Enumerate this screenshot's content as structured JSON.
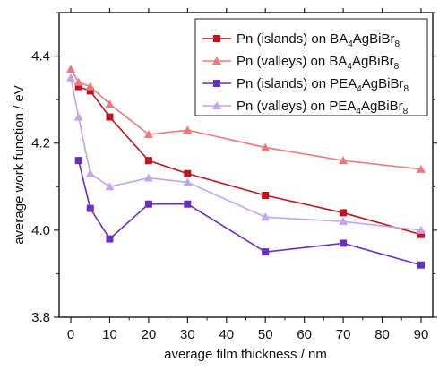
{
  "chart_data": {
    "type": "line",
    "xlabel": "average film thickness / nm",
    "ylabel": "average work function / eV",
    "xlim": [
      -3,
      93
    ],
    "ylim": [
      3.8,
      4.5
    ],
    "x_ticks": [
      "0",
      "10",
      "20",
      "30",
      "40",
      "50",
      "60",
      "70",
      "80",
      "90"
    ],
    "y_ticks": [
      "3.8",
      "4.0",
      "4.2",
      "4.4"
    ],
    "legend_position": "top-right",
    "grid": false,
    "series": [
      {
        "name": "Pn (islands) on BA4AgBiBr8",
        "legend": {
          "pre": "Pn (islands) on BA",
          "sub1": "4",
          "mid": "AgBiBr",
          "sub2": "8"
        },
        "color": "#c0141c",
        "marker": "square",
        "x": [
          2,
          5,
          10,
          20,
          30,
          50,
          70,
          90
        ],
        "y": [
          4.33,
          4.32,
          4.26,
          4.16,
          4.13,
          4.08,
          4.04,
          3.99
        ]
      },
      {
        "name": "Pn (valleys) on BA4AgBiBr8",
        "legend": {
          "pre": "Pn (valleys) on BA",
          "sub1": "4",
          "mid": "AgBiBr",
          "sub2": "8"
        },
        "color": "#f0787a",
        "marker": "triangle",
        "x": [
          0,
          2,
          5,
          10,
          20,
          30,
          50,
          70,
          90
        ],
        "y": [
          4.37,
          4.34,
          4.33,
          4.29,
          4.22,
          4.23,
          4.19,
          4.16,
          4.14
        ]
      },
      {
        "name": "Pn (islands) on PEA4AgBiBr8",
        "legend": {
          "pre": "Pn (islands) on PEA",
          "sub1": "4",
          "mid": "AgBiBr",
          "sub2": "8"
        },
        "color": "#6a2fc0",
        "marker": "square",
        "x": [
          2,
          5,
          10,
          20,
          30,
          50,
          70,
          90
        ],
        "y": [
          4.16,
          4.05,
          3.98,
          4.06,
          4.06,
          3.95,
          3.97,
          3.92
        ]
      },
      {
        "name": "Pn (valleys) on PEA4AgBiBr8",
        "legend": {
          "pre": "Pn (valleys) on PEA",
          "sub1": "4",
          "mid": "AgBiBr",
          "sub2": "8"
        },
        "color": "#c4a3ee",
        "marker": "triangle",
        "x": [
          0,
          2,
          5,
          10,
          20,
          30,
          50,
          70,
          90
        ],
        "y": [
          4.35,
          4.26,
          4.13,
          4.1,
          4.12,
          4.11,
          4.03,
          4.02,
          4.0
        ]
      }
    ]
  }
}
